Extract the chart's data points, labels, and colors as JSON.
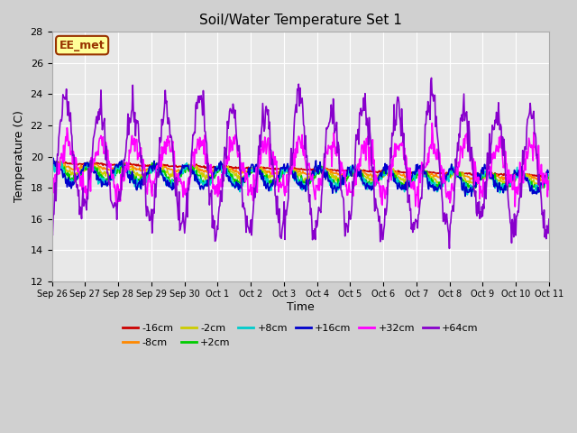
{
  "title": "Soil/Water Temperature Set 1",
  "xlabel": "Time",
  "ylabel": "Temperature (C)",
  "ylim": [
    12,
    28
  ],
  "yticks": [
    12,
    14,
    16,
    18,
    20,
    22,
    24,
    26,
    28
  ],
  "axes_bg": "#e8e8e8",
  "fig_bg": "#d0d0d0",
  "annotation_text": "EE_met",
  "annotation_bg": "#ffff99",
  "annotation_border": "#993300",
  "series_order": [
    "-16cm",
    "-8cm",
    "-2cm",
    "+2cm",
    "+8cm",
    "+16cm",
    "+32cm",
    "+64cm"
  ],
  "series_colors": {
    "-16cm": "#cc0000",
    "-8cm": "#ff8800",
    "-2cm": "#cccc00",
    "+2cm": "#00cc00",
    "+8cm": "#00cccc",
    "+16cm": "#0000cc",
    "+32cm": "#ff00ff",
    "+64cm": "#8800cc"
  },
  "series_lw": 1.2,
  "xtick_labels": [
    "Sep 26",
    "Sep 27",
    "Sep 28",
    "Sep 29",
    "Sep 30",
    "Oct 1",
    "Oct 2",
    "Oct 3",
    "Oct 4",
    "Oct 5",
    "Oct 6",
    "Oct 7",
    "Oct 8",
    "Oct 9",
    "Oct 10",
    "Oct 11"
  ],
  "n_days": 15,
  "pts_per_day": 48
}
